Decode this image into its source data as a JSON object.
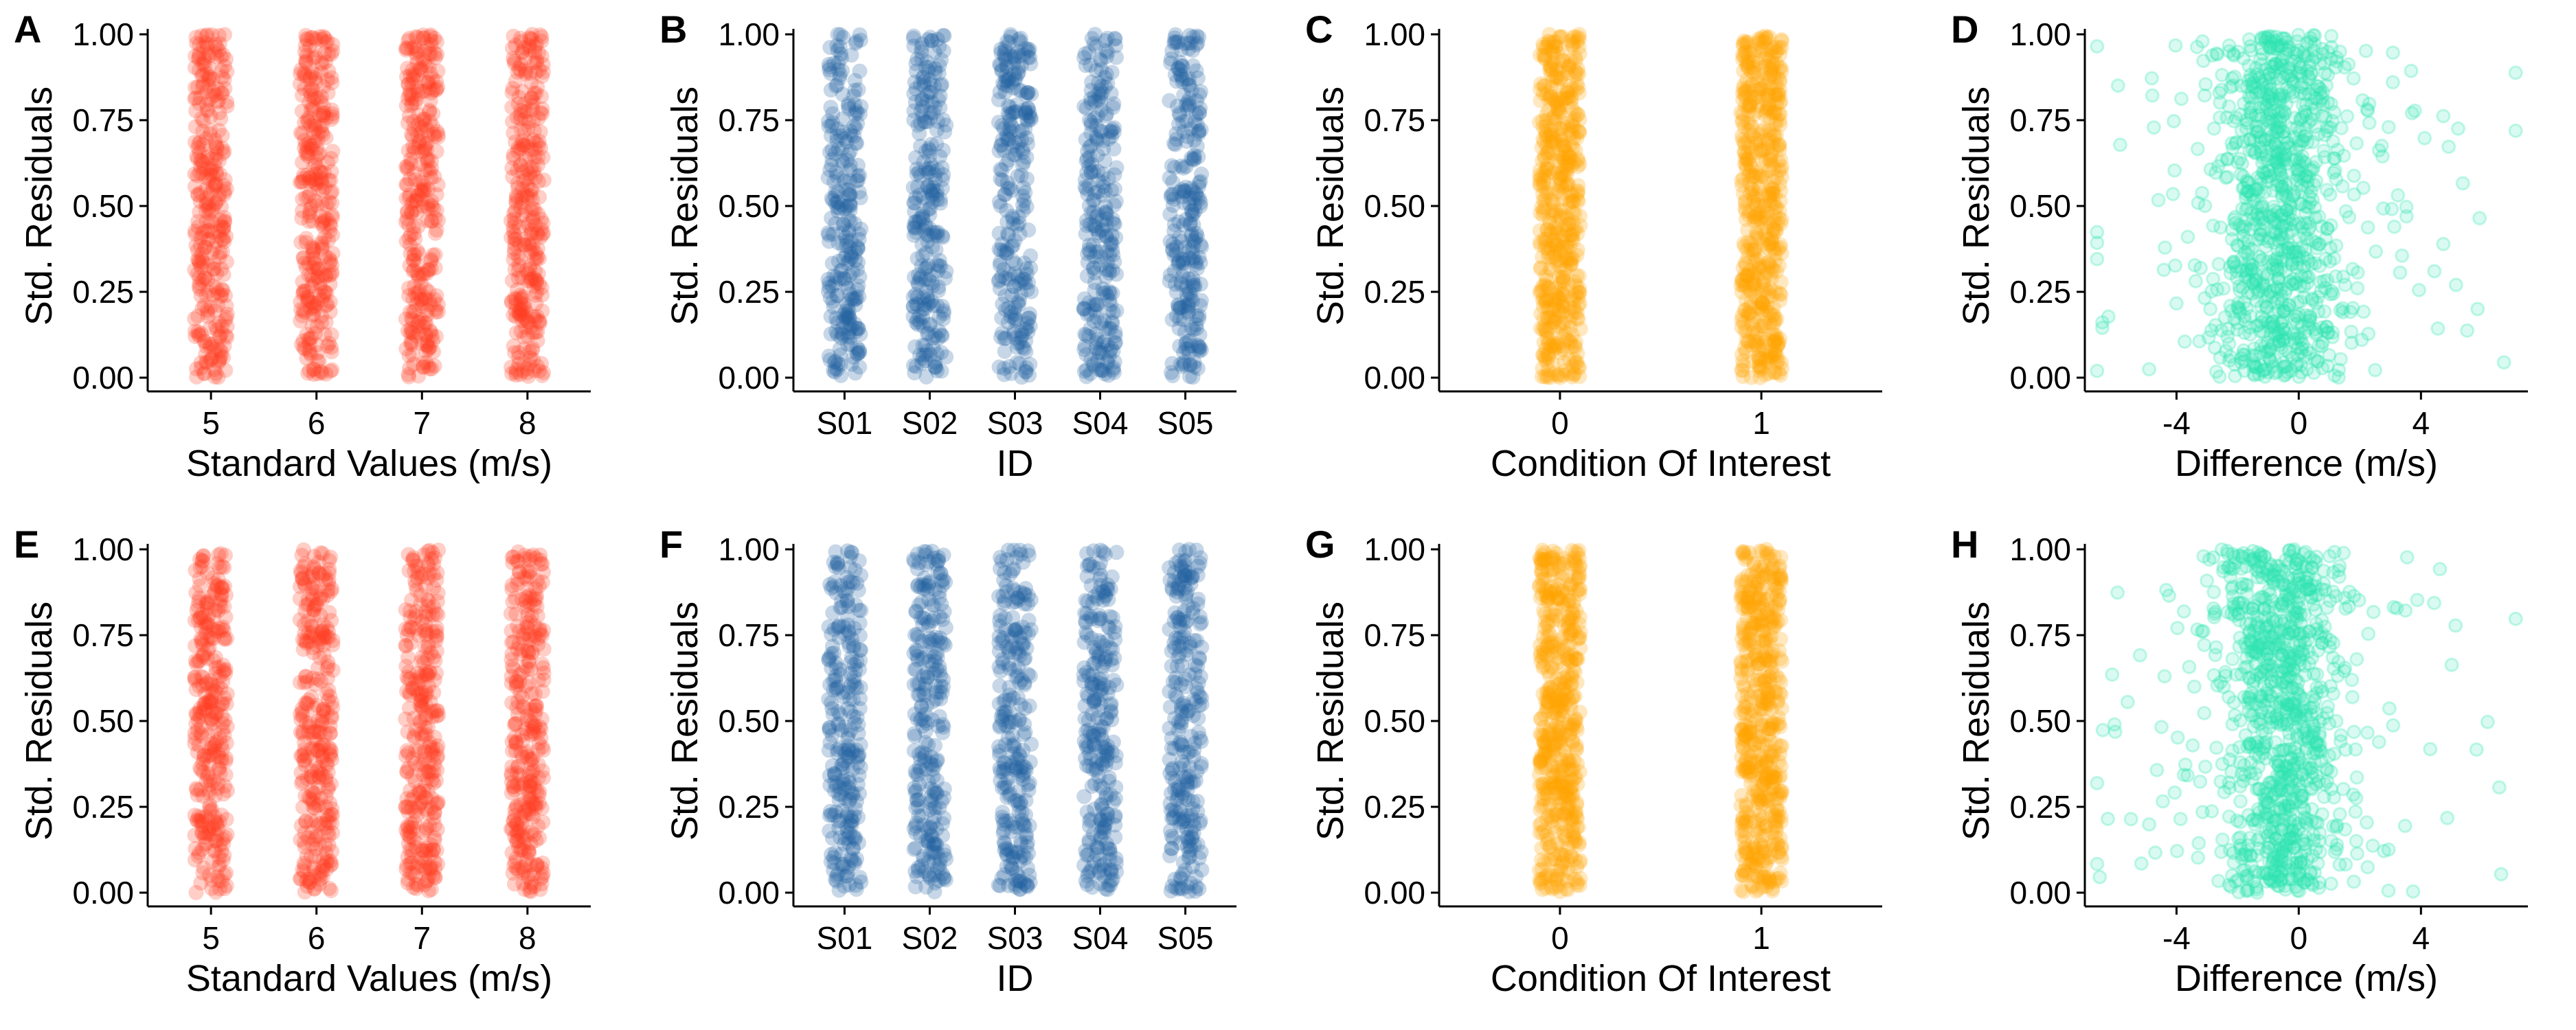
{
  "figure": {
    "background": "#ffffff"
  },
  "colors": {
    "standard": "#ff3a1f",
    "id": "#1f5fa0",
    "condition": "#ffa500",
    "difference": "#2ee6b0"
  },
  "chart_data": [
    {
      "panel": "A",
      "type": "scatter",
      "jitter": true,
      "xlabel": "Standard Values (m/s)",
      "ylabel": "Std. Residuals",
      "categories": [
        "5",
        "6",
        "7",
        "8"
      ],
      "ylim": [
        0,
        1
      ],
      "yticks": [
        "0.00",
        "0.25",
        "0.50",
        "0.75",
        "1.00"
      ],
      "point_alpha": 0.25,
      "color": "#ff3a1f",
      "points_per_category": 300,
      "values": "uniform 0–1 residuals per category"
    },
    {
      "panel": "B",
      "type": "scatter",
      "jitter": true,
      "xlabel": "ID",
      "ylabel": "Std. Residuals",
      "categories": [
        "S01",
        "S02",
        "S03",
        "S04",
        "S05"
      ],
      "ylim": [
        0,
        1
      ],
      "yticks": [
        "0.00",
        "0.25",
        "0.50",
        "0.75",
        "1.00"
      ],
      "point_alpha": 0.25,
      "color": "#1f5fa0",
      "points_per_category": 250,
      "values": "uniform 0–1 residuals per category"
    },
    {
      "panel": "C",
      "type": "scatter",
      "jitter": true,
      "xlabel": "Condition Of Interest",
      "ylabel": "Std. Residuals",
      "categories": [
        "0",
        "1"
      ],
      "ylim": [
        0,
        1
      ],
      "yticks": [
        "0.00",
        "0.25",
        "0.50",
        "0.75",
        "1.00"
      ],
      "point_alpha": 0.25,
      "color": "#ffa500",
      "points_per_category": 500,
      "values": "uniform 0–1 residuals per category"
    },
    {
      "panel": "D",
      "type": "scatter",
      "xlabel": "Difference (m/s)",
      "ylabel": "Std. Residuals",
      "xlim": [
        -7,
        7.5
      ],
      "xticks": [
        -4,
        0,
        4
      ],
      "ylim": [
        0,
        1
      ],
      "yticks": [
        "0.00",
        "0.25",
        "0.50",
        "0.75",
        "1.00"
      ],
      "point_alpha": 0.18,
      "color": "#2ee6b0",
      "n_points": 1000,
      "x_center": -0.6,
      "x_spread": 1.3
    },
    {
      "panel": "E",
      "type": "scatter",
      "jitter": true,
      "xlabel": "Standard Values (m/s)",
      "ylabel": "Std. Residuals",
      "categories": [
        "5",
        "6",
        "7",
        "8"
      ],
      "ylim": [
        0,
        1
      ],
      "yticks": [
        "0.00",
        "0.25",
        "0.50",
        "0.75",
        "1.00"
      ],
      "point_alpha": 0.25,
      "color": "#ff3a1f",
      "points_per_category": 300,
      "values": "uniform 0–1 residuals per category"
    },
    {
      "panel": "F",
      "type": "scatter",
      "jitter": true,
      "xlabel": "ID",
      "ylabel": "Std. Residuals",
      "categories": [
        "S01",
        "S02",
        "S03",
        "S04",
        "S05"
      ],
      "ylim": [
        0,
        1
      ],
      "yticks": [
        "0.00",
        "0.25",
        "0.50",
        "0.75",
        "1.00"
      ],
      "point_alpha": 0.25,
      "color": "#1f5fa0",
      "points_per_category": 250,
      "values": "uniform 0–1 residuals per category"
    },
    {
      "panel": "G",
      "type": "scatter",
      "jitter": true,
      "xlabel": "Condition Of Interest",
      "ylabel": "Std. Residuals",
      "categories": [
        "0",
        "1"
      ],
      "ylim": [
        0,
        1
      ],
      "yticks": [
        "0.00",
        "0.25",
        "0.50",
        "0.75",
        "1.00"
      ],
      "point_alpha": 0.25,
      "color": "#ffa500",
      "points_per_category": 500,
      "values": "uniform 0–1 residuals per category"
    },
    {
      "panel": "H",
      "type": "scatter",
      "xlabel": "Difference (m/s)",
      "ylabel": "Std. Residuals",
      "xlim": [
        -7,
        7.5
      ],
      "xticks": [
        -4,
        0,
        4
      ],
      "ylim": [
        0,
        1
      ],
      "yticks": [
        "0.00",
        "0.25",
        "0.50",
        "0.75",
        "1.00"
      ],
      "point_alpha": 0.18,
      "color": "#2ee6b0",
      "n_points": 1000,
      "x_center": -0.6,
      "x_spread": 1.3
    }
  ]
}
